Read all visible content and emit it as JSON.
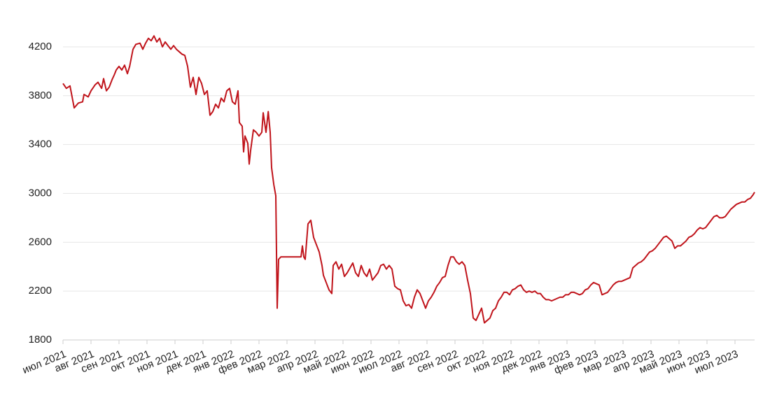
{
  "chart_data": {
    "type": "line",
    "color": "#c0141b",
    "grid": true,
    "xlim": [
      0,
      24.7
    ],
    "xticks": [
      {
        "value": 0,
        "label": "июл 2021"
      },
      {
        "value": 1,
        "label": "авг 2021"
      },
      {
        "value": 2,
        "label": "сен 2021"
      },
      {
        "value": 3,
        "label": "окт 2021"
      },
      {
        "value": 4,
        "label": "ноя 2021"
      },
      {
        "value": 5,
        "label": "дек 2021"
      },
      {
        "value": 6,
        "label": "янв 2022"
      },
      {
        "value": 7,
        "label": "фев 2022"
      },
      {
        "value": 8,
        "label": "мар 2022"
      },
      {
        "value": 9,
        "label": "апр 2022"
      },
      {
        "value": 10,
        "label": "май 2022"
      },
      {
        "value": 11,
        "label": "июн 2022"
      },
      {
        "value": 12,
        "label": "июл 2022"
      },
      {
        "value": 13,
        "label": "авг 2022"
      },
      {
        "value": 14,
        "label": "сен 2022"
      },
      {
        "value": 15,
        "label": "окт 2022"
      },
      {
        "value": 16,
        "label": "ноя 2022"
      },
      {
        "value": 17,
        "label": "дек 2022"
      },
      {
        "value": 18,
        "label": "янв 2023"
      },
      {
        "value": 19,
        "label": "фев 2023"
      },
      {
        "value": 20,
        "label": "мар 2023"
      },
      {
        "value": 21,
        "label": "апр 2023"
      },
      {
        "value": 22,
        "label": "май 2023"
      },
      {
        "value": 23,
        "label": "июн 2023"
      },
      {
        "value": 24,
        "label": "июл 2023"
      }
    ],
    "ylim": [
      1800,
      4300
    ],
    "yticks": [
      1800,
      2200,
      2600,
      3000,
      3400,
      3800,
      4200
    ],
    "x": [
      0,
      0.12,
      0.25,
      0.4,
      0.55,
      0.7,
      0.75,
      0.9,
      1.0,
      1.15,
      1.25,
      1.38,
      1.45,
      1.55,
      1.65,
      1.75,
      1.83,
      1.9,
      2.0,
      2.1,
      2.2,
      2.3,
      2.38,
      2.5,
      2.6,
      2.75,
      2.85,
      2.95,
      3.05,
      3.15,
      3.25,
      3.35,
      3.45,
      3.55,
      3.65,
      3.75,
      3.85,
      3.95,
      4.05,
      4.15,
      4.25,
      4.35,
      4.45,
      4.55,
      4.65,
      4.75,
      4.85,
      4.95,
      5.05,
      5.15,
      5.25,
      5.35,
      5.45,
      5.55,
      5.65,
      5.75,
      5.85,
      5.95,
      6.05,
      6.15,
      6.25,
      6.3,
      6.4,
      6.45,
      6.5,
      6.6,
      6.65,
      6.7,
      6.8,
      6.9,
      7.0,
      7.1,
      7.15,
      7.25,
      7.33,
      7.4,
      7.45,
      7.53,
      7.6,
      7.65,
      7.7,
      7.78,
      8.5,
      8.55,
      8.6,
      8.65,
      8.75,
      8.85,
      8.95,
      9.05,
      9.15,
      9.25,
      9.3,
      9.4,
      9.5,
      9.6,
      9.65,
      9.75,
      9.85,
      9.95,
      10.05,
      10.15,
      10.25,
      10.35,
      10.45,
      10.55,
      10.65,
      10.75,
      10.85,
      10.95,
      11.05,
      11.15,
      11.25,
      11.35,
      11.45,
      11.55,
      11.65,
      11.75,
      11.85,
      11.95,
      12.05,
      12.15,
      12.25,
      12.35,
      12.45,
      12.55,
      12.65,
      12.75,
      12.85,
      12.95,
      13.05,
      13.15,
      13.25,
      13.35,
      13.45,
      13.55,
      13.65,
      13.75,
      13.85,
      13.95,
      14.05,
      14.15,
      14.25,
      14.35,
      14.45,
      14.55,
      14.65,
      14.75,
      14.85,
      14.95,
      15.05,
      15.15,
      15.25,
      15.35,
      15.45,
      15.55,
      15.65,
      15.75,
      15.85,
      15.95,
      16.05,
      16.15,
      16.25,
      16.35,
      16.45,
      16.55,
      16.65,
      16.75,
      16.85,
      16.95,
      17.05,
      17.15,
      17.25,
      17.35,
      17.45,
      17.55,
      17.65,
      17.75,
      17.85,
      17.95,
      18.05,
      18.15,
      18.25,
      18.35,
      18.45,
      18.55,
      18.65,
      18.75,
      18.85,
      18.95,
      19.05,
      19.15,
      19.25,
      19.35,
      19.45,
      19.55,
      19.65,
      19.75,
      19.85,
      19.95,
      20.05,
      20.15,
      20.25,
      20.35,
      20.45,
      20.55,
      20.65,
      20.75,
      20.85,
      20.95,
      21.05,
      21.15,
      21.25,
      21.35,
      21.45,
      21.55,
      21.65,
      21.75,
      21.85,
      21.95,
      22.05,
      22.15,
      22.25,
      22.35,
      22.45,
      22.55,
      22.65,
      22.75,
      22.85,
      22.95,
      23.05,
      23.15,
      23.25,
      23.35,
      23.45,
      23.55,
      23.65,
      23.75,
      23.85,
      23.95,
      24.05,
      24.15,
      24.25,
      24.35,
      24.45,
      24.55,
      24.65,
      24.7
    ],
    "values": [
      3900,
      3860,
      3880,
      3700,
      3740,
      3750,
      3810,
      3790,
      3840,
      3890,
      3910,
      3860,
      3940,
      3840,
      3870,
      3930,
      3970,
      4010,
      4040,
      4010,
      4050,
      3980,
      4040,
      4180,
      4220,
      4230,
      4180,
      4230,
      4270,
      4250,
      4290,
      4240,
      4270,
      4200,
      4240,
      4210,
      4180,
      4210,
      4180,
      4160,
      4140,
      4130,
      4040,
      3870,
      3950,
      3810,
      3950,
      3900,
      3810,
      3840,
      3640,
      3670,
      3730,
      3700,
      3780,
      3750,
      3840,
      3860,
      3750,
      3730,
      3840,
      3580,
      3550,
      3340,
      3470,
      3410,
      3240,
      3350,
      3520,
      3500,
      3470,
      3500,
      3660,
      3500,
      3670,
      3500,
      3210,
      3070,
      2980,
      2060,
      2460,
      2480,
      2480,
      2570,
      2480,
      2460,
      2750,
      2780,
      2640,
      2580,
      2520,
      2410,
      2330,
      2270,
      2210,
      2180,
      2410,
      2440,
      2380,
      2420,
      2320,
      2350,
      2390,
      2430,
      2350,
      2320,
      2410,
      2350,
      2320,
      2380,
      2290,
      2320,
      2350,
      2410,
      2420,
      2380,
      2410,
      2380,
      2240,
      2220,
      2210,
      2120,
      2080,
      2090,
      2060,
      2150,
      2210,
      2180,
      2120,
      2060,
      2120,
      2150,
      2190,
      2240,
      2270,
      2310,
      2320,
      2410,
      2480,
      2480,
      2440,
      2420,
      2440,
      2410,
      2290,
      2180,
      1980,
      1960,
      2010,
      2060,
      1940,
      1960,
      1980,
      2040,
      2060,
      2120,
      2150,
      2190,
      2190,
      2170,
      2210,
      2220,
      2240,
      2250,
      2210,
      2190,
      2200,
      2190,
      2200,
      2180,
      2180,
      2150,
      2130,
      2130,
      2120,
      2130,
      2140,
      2150,
      2150,
      2170,
      2170,
      2190,
      2190,
      2180,
      2170,
      2180,
      2210,
      2220,
      2250,
      2270,
      2260,
      2250,
      2170,
      2180,
      2190,
      2220,
      2250,
      2270,
      2280,
      2280,
      2290,
      2300,
      2310,
      2390,
      2410,
      2430,
      2440,
      2460,
      2490,
      2520,
      2530,
      2550,
      2580,
      2610,
      2640,
      2650,
      2630,
      2610,
      2550,
      2570,
      2570,
      2590,
      2610,
      2640,
      2650,
      2670,
      2700,
      2720,
      2710,
      2720,
      2750,
      2780,
      2810,
      2820,
      2800,
      2800,
      2810,
      2840,
      2870,
      2890,
      2910,
      2920,
      2930,
      2930,
      2950,
      2960,
      2990,
      3010
    ]
  }
}
